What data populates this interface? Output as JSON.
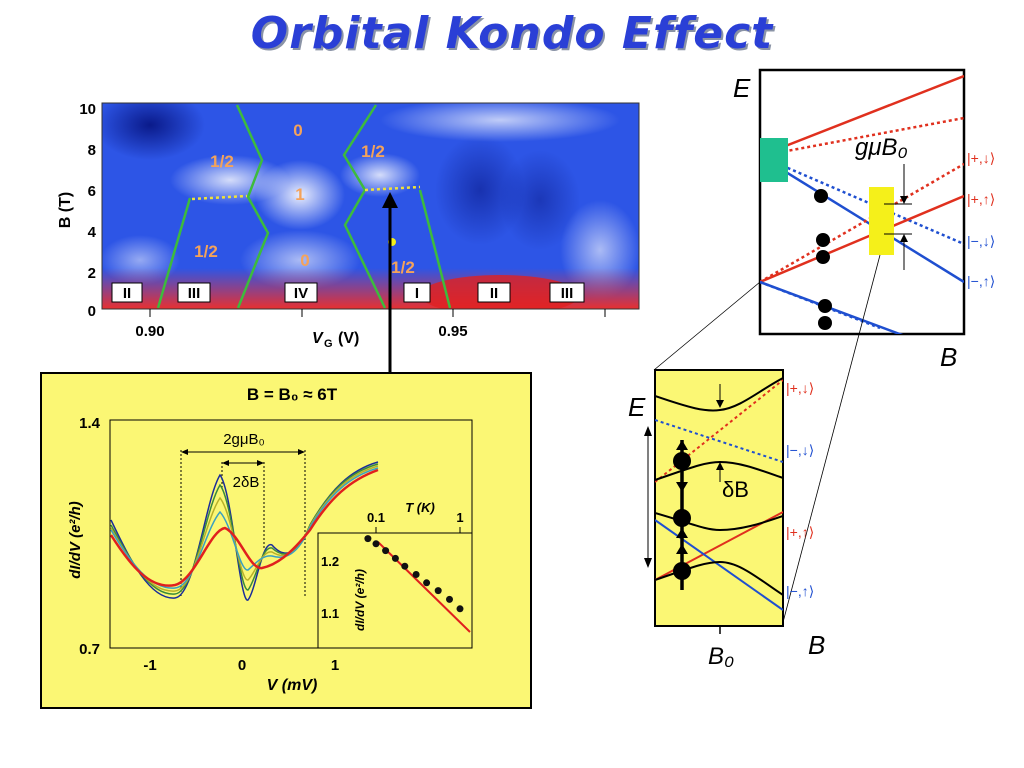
{
  "title": "Orbital Kondo Effect",
  "map": {
    "y_axis_label": "B (T)",
    "y_ticks": [
      "10",
      "8",
      "6",
      "4",
      "2",
      "0"
    ],
    "x_ticks": [
      "0.90",
      "0.95"
    ],
    "x_axis_label": "V",
    "x_axis_sub": "G",
    "x_axis_unit": "(V)",
    "spin_labels": [
      "0",
      "1/2",
      "1/2",
      "1",
      "1/2",
      "0",
      "1/2"
    ],
    "region_labels": [
      "II",
      "III",
      "IV",
      "I",
      "II",
      "III"
    ]
  },
  "spectrum": {
    "header": "B = B₀ ≈ 6T",
    "y_max": "1.4",
    "y_min": "0.7",
    "y_axis_label": "dI/dV (e²/h)",
    "x_ticks": [
      "-1",
      "0",
      "1"
    ],
    "x_axis_label": "V (mV)",
    "annotation_wide": "2gμB₀",
    "annotation_narrow": "2δB",
    "inset": {
      "t_label": "T (K)",
      "t_ticks": [
        "0.1",
        "1"
      ],
      "y_ticks": [
        "1.2",
        "1.1"
      ],
      "y_axis_label": "dI/dV (e²/h)",
      "points": [
        [
          0.08,
          1.245
        ],
        [
          0.1,
          1.235
        ],
        [
          0.13,
          1.222
        ],
        [
          0.17,
          1.207
        ],
        [
          0.22,
          1.192
        ],
        [
          0.3,
          1.176
        ],
        [
          0.4,
          1.16
        ],
        [
          0.55,
          1.145
        ],
        [
          0.75,
          1.128
        ],
        [
          1.0,
          1.11
        ]
      ]
    }
  },
  "energy_diagram": {
    "e_label": "E",
    "b_label": "B",
    "gap_label": "gμB₀",
    "states": [
      "|+,↓⟩",
      "|+,↑⟩",
      "|−,↓⟩",
      "|−,↑⟩"
    ]
  },
  "zoom_diagram": {
    "e_label": "E",
    "b_label": "B",
    "b0_label": "B₀",
    "delta_label": "δB",
    "states": [
      "|+,↓⟩",
      "|−,↓⟩",
      "|+,↑⟩",
      "|−,↑⟩"
    ]
  },
  "colors": {
    "red": "#e0301e",
    "blue": "#1f4fd0",
    "green": "#3dbb3d",
    "yellow_panel": "#fbf774",
    "teal": "#1fbf8f",
    "yellow_box": "#f5f01a"
  }
}
